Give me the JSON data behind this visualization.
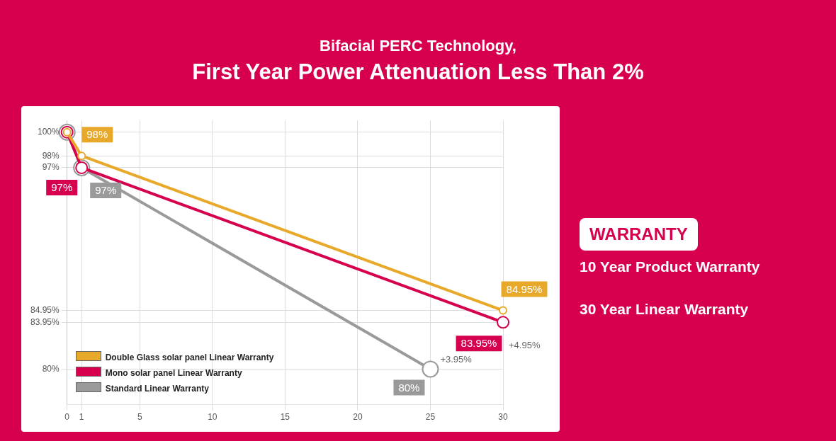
{
  "chart_data": {
    "type": "line",
    "title": "Bifacial PERC Technology,",
    "subtitle": "First Year Power Attenuation Less Than 2%",
    "series": [
      {
        "name": "Double Glass solar panel Linear Warranty",
        "color": "#e8a92a",
        "x": [
          0,
          1,
          30
        ],
        "values": [
          100,
          98,
          84.95
        ],
        "value_labels": [
          null,
          "98%",
          "84.95%"
        ]
      },
      {
        "name": "Mono solar panel Linear Warranty",
        "color": "#d6004f",
        "x": [
          0,
          1,
          30
        ],
        "values": [
          100,
          97,
          83.95
        ],
        "value_labels": [
          null,
          "97%",
          "83.95%"
        ]
      },
      {
        "name": "Standard Linear Warranty",
        "color": "#9a9a9a",
        "x": [
          0,
          1,
          25
        ],
        "values": [
          100,
          97,
          80
        ],
        "value_labels": [
          null,
          "97%",
          "80%"
        ]
      }
    ],
    "xlim": [
      0,
      30
    ],
    "xticks": [
      0,
      1,
      5,
      10,
      15,
      20,
      25,
      30
    ],
    "ylim": [
      77,
      101
    ],
    "yticks": [
      {
        "value": 80,
        "label": "80%"
      },
      {
        "value": 83.95,
        "label": "83.95%"
      },
      {
        "value": 84.95,
        "label": "84.95%"
      },
      {
        "value": 97,
        "label": "97%"
      },
      {
        "value": 98,
        "label": "98%"
      },
      {
        "value": 100,
        "label": "100%"
      }
    ],
    "grid": true,
    "legend": "left",
    "marker": "circle",
    "annotations": [
      "+4.95%",
      "+3.95%",
      "WARRANTY",
      "10 Year Product Warranty",
      "30 Year Linear Warranty"
    ]
  }
}
